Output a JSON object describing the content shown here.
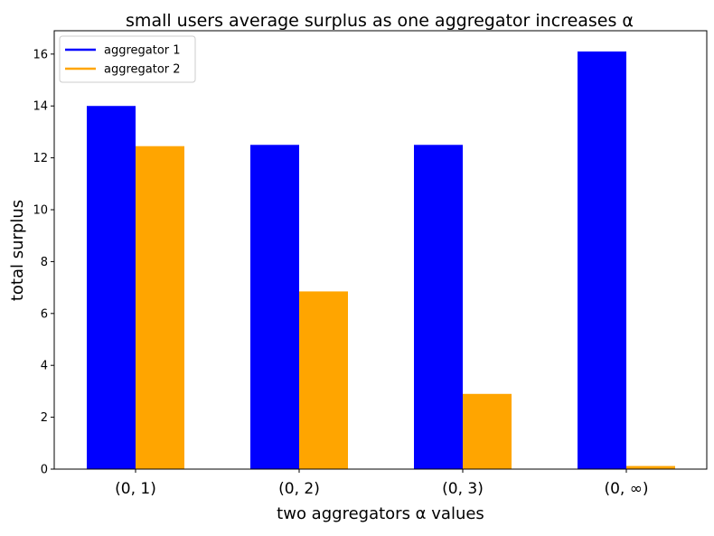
{
  "chart_data": {
    "type": "bar",
    "title": "small users average surplus as one aggregator increases α",
    "xlabel": "two aggregators α values",
    "ylabel": "total surplus",
    "categories": [
      "(0, 1)",
      "(0, 2)",
      "(0, 3)",
      "(0, ∞)"
    ],
    "series": [
      {
        "name": "aggregator 1",
        "color": "#0000ff",
        "values": [
          14.0,
          12.5,
          12.5,
          16.1
        ]
      },
      {
        "name": "aggregator 2",
        "color": "#ffa500",
        "values": [
          12.45,
          6.85,
          2.9,
          0.12
        ]
      }
    ],
    "ylim": [
      0,
      16.9
    ],
    "yticks": [
      0,
      2,
      4,
      6,
      8,
      10,
      12,
      14,
      16
    ],
    "grid": false,
    "legend_position": "top-left"
  }
}
